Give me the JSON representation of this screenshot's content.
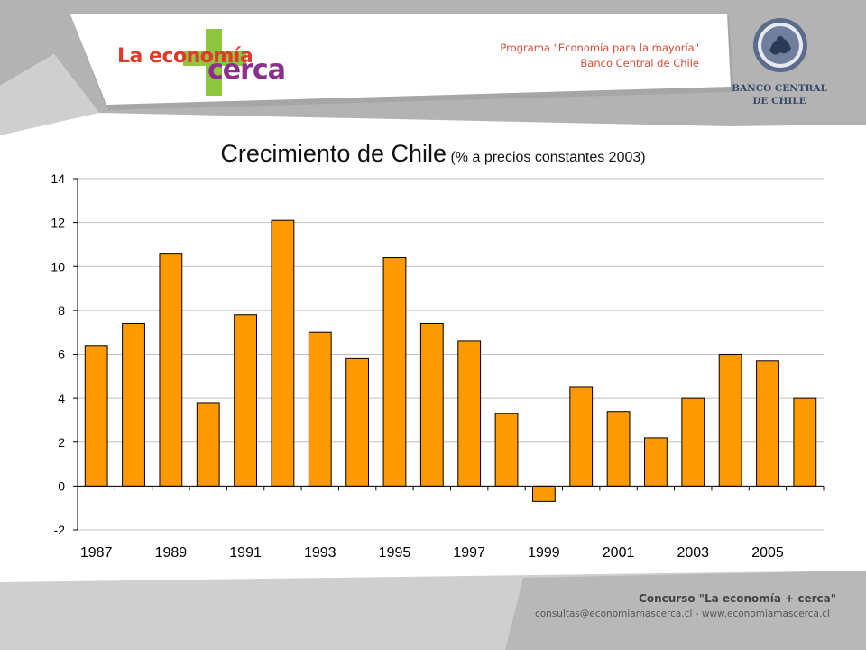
{
  "header": {
    "logo_part1": "La economía",
    "logo_part2": "cerca",
    "program_line1": "Programa \"Economía para la mayoría\"",
    "program_line2": "Banco Central de Chile",
    "bank_name_line1": "BANCO CENTRAL",
    "bank_name_line2": "DE CHILE"
  },
  "footer": {
    "contest": "Concurso \"La economía + cerca\"",
    "contact": "consultas@economiamascerca.cl  -  www.economiamascerca.cl"
  },
  "colors": {
    "bar_fill": "#ff9900",
    "bar_stroke": "#000000",
    "grid": "#c0c0c0",
    "logo_cross": "#8dc63f",
    "logo_red": "#e03a2a",
    "logo_purple": "#8a2f8c"
  },
  "chart_data": {
    "type": "bar",
    "title": "Crecimiento de Chile",
    "subtitle": "(% a precios constantes 2003)",
    "xlabel": "",
    "ylabel": "",
    "ylim": [
      -2,
      14
    ],
    "yticks": [
      "-2",
      "0",
      "2",
      "4",
      "6",
      "8",
      "10",
      "12",
      "14"
    ],
    "grid": true,
    "legend": "none",
    "categories": [
      "1987",
      "1988",
      "1989",
      "1990",
      "1991",
      "1992",
      "1993",
      "1994",
      "1995",
      "1996",
      "1997",
      "1998",
      "1999",
      "2000",
      "2001",
      "2002",
      "2003",
      "2004",
      "2005",
      "2006"
    ],
    "x_tick_labels": [
      "1987",
      "1989",
      "1991",
      "1993",
      "1995",
      "1997",
      "1999",
      "2001",
      "2003",
      "2005"
    ],
    "values": [
      6.4,
      7.4,
      10.6,
      3.8,
      7.8,
      12.1,
      7.0,
      5.8,
      10.4,
      7.4,
      6.6,
      3.3,
      -0.7,
      4.5,
      3.4,
      2.2,
      4.0,
      6.0,
      5.7,
      4.0
    ]
  }
}
